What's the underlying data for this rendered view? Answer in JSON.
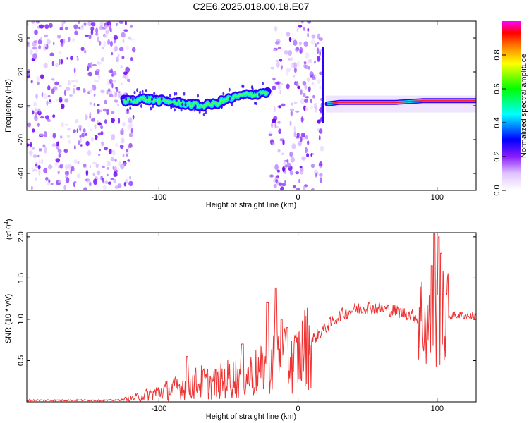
{
  "title": "C2E6.2025.018.00.18.E07",
  "chart_data": [
    {
      "type": "heatmap",
      "xlabel": "Height of straight line (km)",
      "ylabel": "Frequency (Hz)",
      "xlim": [
        -195,
        128
      ],
      "ylim": [
        -50,
        50
      ],
      "xticks": [
        -100,
        0,
        100
      ],
      "yticks": [
        -40,
        -20,
        0,
        20,
        40
      ],
      "colorbar": {
        "label": "Normalized spectral amplitude",
        "range": [
          0,
          1
        ],
        "ticks": [
          0.0,
          0.2,
          0.4,
          0.6,
          0.8
        ],
        "colormap": [
          "#ffffff",
          "#d9b3ff",
          "#7a00ff",
          "#0000ff",
          "#00ffff",
          "#00ff00",
          "#ffff00",
          "#ff8000",
          "#ff0000",
          "#ff00ff"
        ]
      },
      "trace": {
        "x": [
          -125,
          -110,
          -100,
          -90,
          -80,
          -70,
          -60,
          -50,
          -40,
          -30,
          -25,
          20,
          30,
          50,
          70,
          90,
          110,
          128
        ],
        "y": [
          3,
          4,
          3,
          2,
          1,
          0,
          1,
          4,
          6,
          7,
          8,
          1,
          2,
          2,
          2,
          3,
          3,
          3
        ]
      },
      "noise_regions_x": [
        [
          -195,
          -118
        ],
        [
          -20,
          18
        ]
      ]
    },
    {
      "type": "line",
      "xlabel": "Height of straight line (km)",
      "ylabel": "SNR (10 * v/v)",
      "y_multiplier_label": "(x10",
      "y_multiplier_exp": "4",
      "y_multiplier_close": ")",
      "xlim": [
        -195,
        128
      ],
      "ylim": [
        0,
        2.05
      ],
      "xticks": [
        -100,
        0,
        100
      ],
      "yticks": [
        0.5,
        1.0,
        1.5,
        2.0
      ],
      "ytick_labels": [
        "0.5",
        "1.0",
        "1.5",
        "2.0"
      ],
      "color": "#ee3333",
      "series": [
        {
          "x": [
            -195,
            -150,
            -130,
            -120,
            -110,
            -100,
            -90,
            -80,
            -70,
            -60,
            -50,
            -40,
            -30,
            -20,
            -15,
            -10,
            -5,
            0,
            10,
            20,
            30,
            40,
            50,
            60,
            70,
            80,
            90,
            95,
            100,
            105,
            110,
            128
          ],
          "y": [
            0.02,
            0.02,
            0.02,
            0.04,
            0.08,
            0.12,
            0.16,
            0.2,
            0.24,
            0.22,
            0.28,
            0.3,
            0.35,
            0.45,
            0.6,
            0.5,
            0.45,
            0.55,
            0.75,
            0.9,
            1.05,
            1.12,
            1.15,
            1.13,
            1.1,
            1.06,
            1.0,
            0.9,
            1.0,
            1.0,
            1.05,
            1.04
          ]
        }
      ],
      "spikes": [
        {
          "x": -80,
          "y": 0.55
        },
        {
          "x": -40,
          "y": 0.7
        },
        {
          "x": -22,
          "y": 1.2
        },
        {
          "x": -16,
          "y": 1.38
        },
        {
          "x": -12,
          "y": 1.0
        },
        {
          "x": -8,
          "y": 0.9
        },
        {
          "x": 96,
          "y": 1.65
        },
        {
          "x": 98,
          "y": 2.05
        },
        {
          "x": 101,
          "y": 2.0
        },
        {
          "x": 103,
          "y": 1.8
        }
      ]
    }
  ]
}
